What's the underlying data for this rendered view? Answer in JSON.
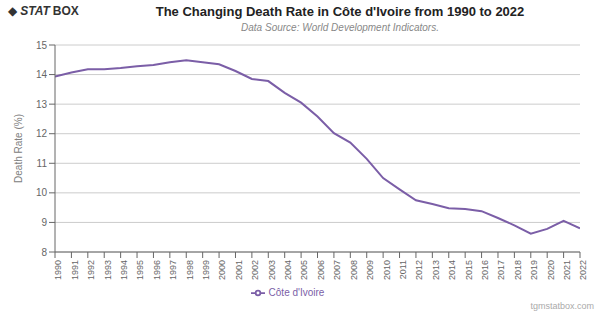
{
  "chart_data": {
    "type": "line",
    "title": "The Changing Death Rate in Côte d'Ivoire from 1990 to 2022",
    "subtitle": "Data Source: World Development Indicators.",
    "ylabel": "Death Rate (%)",
    "annotations": [
      "◆",
      "STAT",
      "BOX",
      "tgmstatbox.com"
    ],
    "x": [
      1990,
      1991,
      1992,
      1993,
      1994,
      1995,
      1996,
      1997,
      1998,
      1999,
      2000,
      2001,
      2002,
      2003,
      2004,
      2005,
      2006,
      2007,
      2008,
      2009,
      2010,
      2011,
      2012,
      2013,
      2014,
      2015,
      2016,
      2017,
      2018,
      2019,
      2020,
      2021,
      2022
    ],
    "xlim": [
      1990,
      2022
    ],
    "xticks": [
      1990,
      1991,
      1992,
      1993,
      1994,
      1995,
      1996,
      1997,
      1998,
      1999,
      2000,
      2001,
      2002,
      2003,
      2004,
      2005,
      2006,
      2007,
      2008,
      2009,
      2010,
      2011,
      2012,
      2013,
      2014,
      2015,
      2016,
      2017,
      2018,
      2019,
      2020,
      2021,
      2022
    ],
    "series": [
      {
        "name": "Côte d'Ivoire",
        "color": "#7b5ea7",
        "values": [
          13.93,
          14.07,
          14.18,
          14.18,
          14.22,
          14.28,
          14.32,
          14.42,
          14.48,
          14.42,
          14.35,
          14.12,
          13.85,
          13.78,
          13.38,
          13.05,
          12.58,
          12.02,
          11.7,
          11.15,
          10.5,
          10.12,
          9.75,
          9.62,
          9.48,
          9.45,
          9.38,
          9.15,
          8.9,
          8.62,
          8.78,
          9.05,
          8.8
        ]
      }
    ],
    "ylim": [
      8,
      15
    ],
    "yticks": [
      8,
      9,
      10,
      11,
      12,
      13,
      14,
      15
    ],
    "grid": true,
    "legend": "bottom"
  }
}
